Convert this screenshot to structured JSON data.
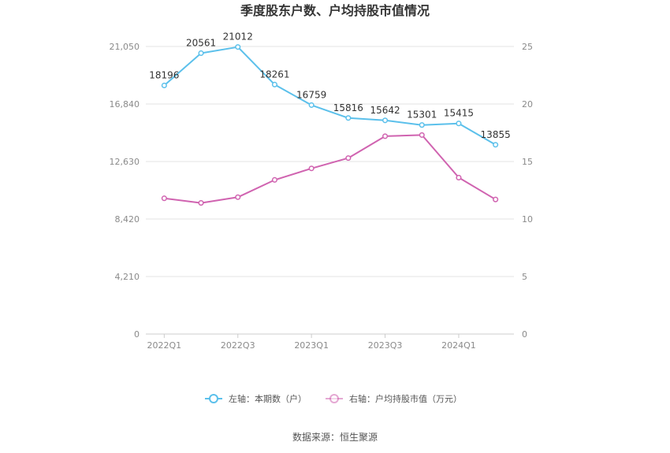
{
  "chart_data": {
    "type": "line",
    "title": "季度股东户数、户均持股市值情况",
    "categories": [
      "2022Q1",
      "2022Q2",
      "2022Q3",
      "2022Q4",
      "2023Q1",
      "2023Q2",
      "2023Q3",
      "2023Q4",
      "2024Q1",
      "2024Q2"
    ],
    "x_tick_labels": [
      "2022Q1",
      "2022Q3",
      "2023Q1",
      "2023Q3",
      "2024Q1"
    ],
    "y_left": {
      "ylim": [
        0,
        21050
      ],
      "ticks": [
        0,
        4210,
        8420,
        12630,
        16840,
        21050
      ],
      "tick_labels": [
        "0",
        "4,210",
        "8,420",
        "12,630",
        "16,840",
        "21,050"
      ]
    },
    "y_right": {
      "ylim": [
        0,
        25
      ],
      "ticks": [
        0,
        5,
        10,
        15,
        20,
        25
      ],
      "tick_labels": [
        "0",
        "5",
        "10",
        "15",
        "20",
        "25"
      ]
    },
    "series": [
      {
        "name": "左轴：本期数（户）",
        "axis": "left",
        "color": "#5bc0eb",
        "values": [
          18196,
          20561,
          21012,
          18261,
          16759,
          15816,
          15642,
          15301,
          15415,
          13855
        ],
        "data_labels": [
          "18196",
          "20561",
          "21012",
          "18261",
          "16759",
          "15816",
          "15642",
          "15301",
          "15415",
          "13855"
        ]
      },
      {
        "name": "右轴：户均持股市值（万元）",
        "axis": "right",
        "color": "#d063b0",
        "values": [
          11.8,
          11.4,
          11.9,
          13.4,
          14.4,
          15.3,
          17.2,
          17.3,
          13.6,
          11.7
        ]
      }
    ],
    "grid": true,
    "legend_position": "bottom"
  },
  "source": "数据来源：恒生聚源"
}
